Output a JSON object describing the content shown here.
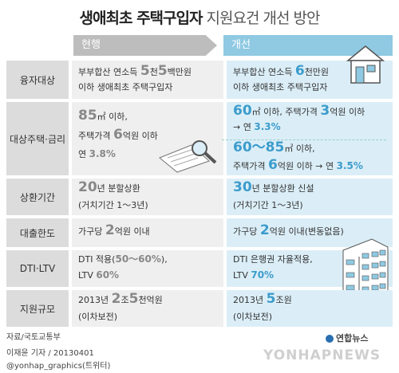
{
  "title": {
    "bold": "생애최초 주택구입자",
    "rest": " 지원요건 개선 방안"
  },
  "headers": {
    "current": "현행",
    "improved": "개선"
  },
  "rows": {
    "r1": {
      "label": "융자대상",
      "cur": {
        "a": "부부합산 연소득 ",
        "n1": "5",
        "b": "천",
        "n2": "5",
        "c": "백만원",
        "line2": "이하 생애최초 주택구입자"
      },
      "new": {
        "a": "부부합산 연소득 ",
        "n1": "6",
        "b": "천만원",
        "line2": "이하 생애최초 주택구입자"
      }
    },
    "r2": {
      "label": "대상주택·금리",
      "cur": {
        "n1": "85",
        "u1": "㎡ 이하,",
        "l2a": "주택가격 ",
        "n2": "6",
        "l2b": "억원 이하",
        "l3a": "연 ",
        "n3": "3.8%"
      },
      "new1": {
        "n1": "60",
        "u1": "㎡ 이하, 주택가격 ",
        "n2": "3",
        "u2": "억원 이하",
        "l2a": "→ 연 ",
        "n3": "3.3%"
      },
      "new2": {
        "n1": "60～85",
        "u1": "㎡ 이하,",
        "l2a": "주택가격 ",
        "n2": "6",
        "l2b": "억원 이하 → 연 ",
        "n3": "3.5%"
      }
    },
    "r3": {
      "label": "상환기간",
      "cur": {
        "n1": "20",
        "a": "년 분할상환",
        "line2": "(거치기간 1～3년)"
      },
      "new": {
        "n1": "30",
        "a": "년 분할상환 신설",
        "line2": "(거치기간 1～3년)"
      }
    },
    "r4": {
      "label": "대출한도",
      "cur": {
        "a": "가구당 ",
        "n1": "2",
        "b": "억원 이내"
      },
      "new": {
        "a": "가구당 ",
        "n1": "2",
        "b": "억원 이내",
        "c": "(변동없음)"
      }
    },
    "r5": {
      "label": "DTI·LTV",
      "cur": {
        "a": "DTI 적용(",
        "n1": "50～60%",
        "b": "),",
        "c": "LTV ",
        "n2": "60%"
      },
      "new": {
        "a": "DTI 은행권 자율적용,",
        "c": "LTV ",
        "n2": "70%"
      }
    },
    "r6": {
      "label": "지원규모",
      "cur": {
        "a": "2013년 ",
        "n1": "2",
        "b": "조",
        "n2": "5",
        "c": "천억원",
        "line2": "(이차보전)"
      },
      "new": {
        "a": "2013년 ",
        "n1": "5",
        "b": "조원",
        "line2": "(이차보전)"
      }
    }
  },
  "source": "자료/국토교통부",
  "byline": "이재윤 기자 / 20130401",
  "twitter": "@yonhap_graphics(트위터)",
  "logo": "연합뉴스",
  "watermark": "YONHAPNEWS",
  "colors": {
    "accent": "#3c9ccc",
    "current_bg": "#efefef",
    "improved_bg": "#dbeef7"
  }
}
